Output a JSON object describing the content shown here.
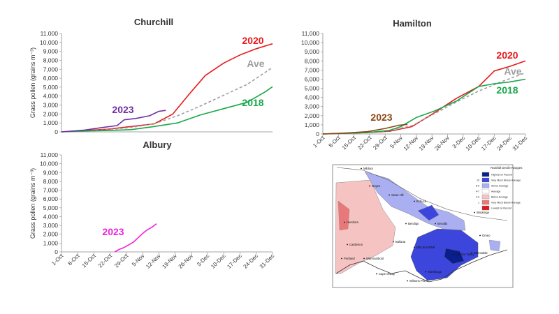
{
  "chart_data": [
    {
      "id": "churchill",
      "type": "line",
      "title": "Churchill",
      "ylabel": "Grass pollen (grains m⁻³)",
      "xlabel": "",
      "ylim": [
        0,
        11000
      ],
      "yticks": [
        0,
        1000,
        2000,
        3000,
        4000,
        5000,
        6000,
        7000,
        8000,
        9000,
        10000,
        11000
      ],
      "ytick_labels": [
        "0",
        "1,000",
        "2,000",
        "3,000",
        "4,000",
        "5,000",
        "6,000",
        "7,000",
        "8,000",
        "9,000",
        "10,000",
        "11,000"
      ],
      "xlim": [
        0,
        91
      ],
      "xtick_labels": [],
      "series": [
        {
          "name": "2020",
          "label": "2020",
          "color": "#e8191b",
          "dashed": false,
          "x": [
            0,
            10,
            20,
            30,
            40,
            48,
            55,
            62,
            70,
            77,
            84,
            91
          ],
          "y": [
            0,
            150,
            300,
            600,
            900,
            2000,
            4200,
            6300,
            7700,
            8600,
            9300,
            9850
          ]
        },
        {
          "name": "Ave",
          "label": "Ave",
          "color": "#9e9e9e",
          "dashed": true,
          "x": [
            0,
            10,
            20,
            30,
            40,
            50,
            60,
            70,
            80,
            91
          ],
          "y": [
            0,
            100,
            250,
            500,
            900,
            1800,
            2900,
            4100,
            5300,
            7200
          ]
        },
        {
          "name": "2018",
          "label": "2018",
          "color": "#1aa64a",
          "dashed": false,
          "x": [
            0,
            10,
            20,
            30,
            40,
            50,
            60,
            70,
            80,
            88,
            91
          ],
          "y": [
            0,
            100,
            150,
            250,
            600,
            1000,
            1900,
            2600,
            3300,
            4500,
            5050
          ]
        },
        {
          "name": "2023",
          "label": "2023",
          "color": "#7030a0",
          "dashed": false,
          "x": [
            0,
            10,
            18,
            24,
            27,
            32,
            38,
            42,
            45
          ],
          "y": [
            0,
            200,
            500,
            700,
            1350,
            1500,
            1800,
            2300,
            2400
          ]
        }
      ]
    },
    {
      "id": "hamilton",
      "type": "line",
      "title": "Hamilton",
      "ylabel": "",
      "xlabel": "",
      "ylim": [
        0,
        11000
      ],
      "yticks": [
        0,
        1000,
        2000,
        3000,
        4000,
        5000,
        6000,
        7000,
        8000,
        9000,
        10000,
        11000
      ],
      "ytick_labels": [
        "0",
        "1,000",
        "2,000",
        "3,000",
        "4,000",
        "5,000",
        "6,000",
        "7,000",
        "8,000",
        "9,000",
        "10,000",
        "11,000"
      ],
      "xlim": [
        0,
        91
      ],
      "xtick_pos": [
        0,
        7,
        14,
        21,
        28,
        35,
        42,
        49,
        56,
        63,
        70,
        77,
        84,
        91
      ],
      "xtick_labels": [
        "1-Oct",
        "8-Oct",
        "15-Oct",
        "22-Oct",
        "29-Oct",
        "5-Nov",
        "12-Nov",
        "19-Nov",
        "26-Nov",
        "3-Dec",
        "10-Dec",
        "17-Dec",
        "24-Dec",
        "31-Dec"
      ],
      "series": [
        {
          "name": "2020",
          "label": "2020",
          "color": "#e8191b",
          "dashed": false,
          "x": [
            0,
            20,
            30,
            40,
            50,
            60,
            70,
            77,
            84,
            91
          ],
          "y": [
            0,
            150,
            300,
            800,
            2300,
            3900,
            5200,
            6900,
            7400,
            8000
          ]
        },
        {
          "name": "Ave",
          "label": "Ave",
          "color": "#9e9e9e",
          "dashed": true,
          "x": [
            0,
            20,
            30,
            40,
            50,
            60,
            70,
            80,
            91
          ],
          "y": [
            0,
            150,
            350,
            900,
            2200,
            3500,
            4700,
            5700,
            6700
          ]
        },
        {
          "name": "2018",
          "label": "2018",
          "color": "#1aa64a",
          "dashed": false,
          "x": [
            0,
            20,
            30,
            35,
            42,
            50,
            60,
            70,
            77,
            84,
            91
          ],
          "y": [
            0,
            150,
            400,
            800,
            1800,
            2500,
            3600,
            5200,
            5500,
            5700,
            6000
          ]
        },
        {
          "name": "2023",
          "label": "2023",
          "color": "#8b4513",
          "dashed": false,
          "x": [
            0,
            10,
            20,
            28,
            34,
            38
          ],
          "y": [
            0,
            100,
            250,
            600,
            950,
            1050
          ]
        }
      ]
    },
    {
      "id": "albury",
      "type": "line",
      "title": "Albury",
      "ylabel": "Grass pollen (grains m⁻³)",
      "xlabel": "",
      "ylim": [
        0,
        11000
      ],
      "yticks": [
        0,
        1000,
        2000,
        3000,
        4000,
        5000,
        6000,
        7000,
        8000,
        9000,
        10000,
        11000
      ],
      "ytick_labels": [
        "0",
        "1,000",
        "2,000",
        "3,000",
        "4,000",
        "5,000",
        "6,000",
        "7,000",
        "8,000",
        "9,000",
        "10,000",
        "11,000"
      ],
      "xlim": [
        0,
        91
      ],
      "xtick_pos": [
        0,
        7,
        14,
        21,
        28,
        35,
        42,
        49,
        56,
        63,
        70,
        77,
        84,
        91
      ],
      "xtick_labels": [
        "1-Oct",
        "8-Oct",
        "15-Oct",
        "22-Oct",
        "29-Oct",
        "5-Nov",
        "12-Nov",
        "19-Nov",
        "26-Nov",
        "3-Dec",
        "10-Dec",
        "17-Dec",
        "24-Dec",
        "31-Dec"
      ],
      "series": [
        {
          "name": "2023",
          "label": "2023",
          "color": "#ee22dd",
          "dashed": false,
          "x": [
            23,
            25,
            27,
            29,
            31,
            33,
            35,
            37,
            39,
            41
          ],
          "y": [
            0,
            300,
            500,
            800,
            1100,
            1600,
            2100,
            2500,
            2800,
            3200
          ]
        }
      ]
    }
  ],
  "map": {
    "title": "Rainfall Decile Ranges",
    "legend": [
      {
        "label": "Highest on Record",
        "value": "",
        "color": "#0a1e8c"
      },
      {
        "label": "Very Much Above Average",
        "value": "10",
        "color": "#3c46dc"
      },
      {
        "label": "Above Average",
        "value": "8-9",
        "color": "#a9aff0"
      },
      {
        "label": "Average",
        "value": "4-7",
        "color": "#ffffff"
      },
      {
        "label": "Below Average",
        "value": "2-3",
        "color": "#f6c3c3"
      },
      {
        "label": "Very Much Below Average",
        "value": "1",
        "color": "#e8787a"
      },
      {
        "label": "Lowest on Record",
        "value": "",
        "color": "#e01b1b"
      }
    ],
    "places": [
      "Mildura",
      "Ouyen",
      "Swan Hill",
      "Echuca",
      "Wodonga",
      "Horsham",
      "Bendigo",
      "Benalla",
      "Omeo",
      "Castlerton",
      "Ballarat",
      "MELBOURNE",
      "Portland",
      "Warrnambool",
      "Latrobe Valley",
      "Bairnsdale",
      "Wonthaggi",
      "Cape Otway",
      "Wilsons Prom."
    ]
  }
}
